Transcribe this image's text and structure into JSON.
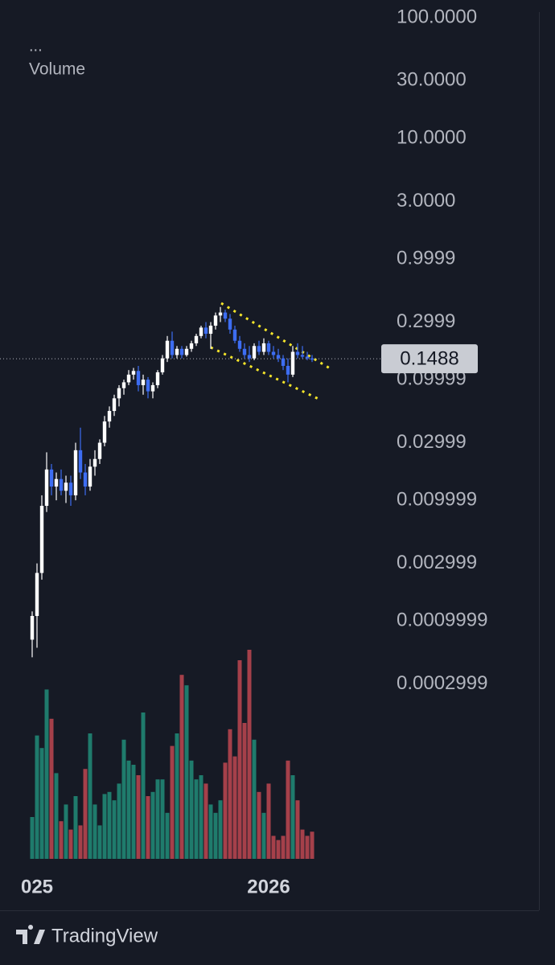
{
  "chart_data": {
    "type": "candlestick",
    "indicator_menu": "...",
    "watermark": "TradingView",
    "log_scale": true,
    "ylim": [
      4e-06,
      140
    ],
    "yticks": [
      {
        "value": 100,
        "label": "100.0000"
      },
      {
        "value": 30,
        "label": "30.0000"
      },
      {
        "value": 10,
        "label": "10.0000"
      },
      {
        "value": 3,
        "label": "3.0000"
      },
      0.9999,
      0.2999,
      0.09999,
      0.02999,
      0.009999,
      0.002999,
      0.0009999,
      0.0002999
    ],
    "grid": false,
    "up_color": "#ffffff",
    "down_color": "#3d6df2",
    "last_price": 0.1488,
    "categories": [
      null,
      "025",
      null,
      null,
      null,
      null,
      null,
      null,
      null,
      null,
      null,
      null,
      null,
      null,
      null,
      null,
      null,
      null,
      null,
      null,
      null,
      null,
      null,
      null,
      null,
      null,
      null,
      null,
      null,
      null,
      null,
      null,
      null,
      null,
      null,
      null,
      null,
      null,
      null,
      null,
      null,
      null,
      null,
      null,
      null,
      null,
      null,
      null,
      null,
      "2026",
      null,
      null,
      null,
      null,
      null,
      null,
      null,
      null,
      null
    ],
    "open": [
      0.0007,
      0.0011,
      0.0025,
      0.009,
      0.018,
      0.013,
      0.015,
      0.012,
      0.014,
      0.011,
      0.026,
      0.017,
      0.013,
      0.019,
      0.022,
      0.03,
      0.045,
      0.055,
      0.07,
      0.085,
      0.095,
      0.11,
      0.118,
      0.09,
      0.1,
      0.08,
      0.09,
      0.115,
      0.15,
      0.21,
      0.16,
      0.18,
      0.16,
      0.18,
      0.2,
      0.23,
      0.27,
      0.24,
      0.28,
      0.34,
      0.36,
      0.32,
      0.26,
      0.21,
      0.18,
      0.16,
      0.15,
      0.19,
      0.17,
      0.2,
      0.17,
      0.16,
      0.15,
      0.13,
      0.11,
      0.17,
      0.16,
      0.155,
      0.15
    ],
    "high": [
      0.0012,
      0.003,
      0.011,
      0.025,
      0.02,
      0.017,
      0.018,
      0.016,
      0.016,
      0.03,
      0.04,
      0.02,
      0.022,
      0.026,
      0.032,
      0.05,
      0.06,
      0.075,
      0.09,
      0.1,
      0.12,
      0.125,
      0.13,
      0.11,
      0.105,
      0.095,
      0.12,
      0.16,
      0.23,
      0.25,
      0.19,
      0.19,
      0.19,
      0.21,
      0.24,
      0.28,
      0.3,
      0.3,
      0.36,
      0.4,
      0.38,
      0.35,
      0.28,
      0.23,
      0.2,
      0.19,
      0.2,
      0.21,
      0.22,
      0.21,
      0.19,
      0.18,
      0.16,
      0.15,
      0.19,
      0.2,
      0.19,
      0.17,
      0.16
    ],
    "low": [
      0.0005,
      0.0006,
      0.0022,
      0.008,
      0.011,
      0.01,
      0.011,
      0.0095,
      0.009,
      0.01,
      0.015,
      0.011,
      0.012,
      0.016,
      0.02,
      0.028,
      0.04,
      0.05,
      0.06,
      0.075,
      0.09,
      0.1,
      0.08,
      0.075,
      0.07,
      0.07,
      0.085,
      0.11,
      0.14,
      0.15,
      0.15,
      0.15,
      0.155,
      0.17,
      0.19,
      0.22,
      0.22,
      0.18,
      0.26,
      0.3,
      0.3,
      0.24,
      0.2,
      0.17,
      0.15,
      0.14,
      0.145,
      0.16,
      0.16,
      0.16,
      0.15,
      0.14,
      0.12,
      0.095,
      0.105,
      0.15,
      0.15,
      0.145,
      0.14
    ],
    "close": [
      0.0011,
      0.0025,
      0.009,
      0.018,
      0.013,
      0.015,
      0.012,
      0.014,
      0.011,
      0.026,
      0.017,
      0.013,
      0.019,
      0.022,
      0.03,
      0.045,
      0.055,
      0.07,
      0.085,
      0.095,
      0.11,
      0.118,
      0.09,
      0.1,
      0.08,
      0.09,
      0.115,
      0.15,
      0.21,
      0.16,
      0.18,
      0.16,
      0.18,
      0.2,
      0.23,
      0.27,
      0.24,
      0.28,
      0.34,
      0.36,
      0.32,
      0.26,
      0.21,
      0.18,
      0.16,
      0.15,
      0.19,
      0.17,
      0.2,
      0.17,
      0.16,
      0.15,
      0.13,
      0.11,
      0.17,
      0.16,
      0.155,
      0.15,
      0.1488
    ],
    "volume": {
      "name": "Volume",
      "up_color": "#1f7b6c",
      "down_color": "#a5404a",
      "lim": [
        0,
        100
      ],
      "values": [
        20,
        59,
        53,
        81,
        67,
        41,
        18,
        26,
        14,
        30,
        16,
        43,
        60,
        26,
        16,
        31,
        32,
        28,
        36,
        57,
        47,
        45,
        40,
        70,
        30,
        32,
        38,
        38,
        22,
        54,
        60,
        88,
        83,
        47,
        38,
        40,
        36,
        26,
        22,
        28,
        46,
        62,
        49,
        95,
        65,
        100,
        57,
        32,
        22,
        36,
        11,
        9,
        11,
        47,
        40,
        28,
        14,
        11,
        13
      ]
    }
  }
}
